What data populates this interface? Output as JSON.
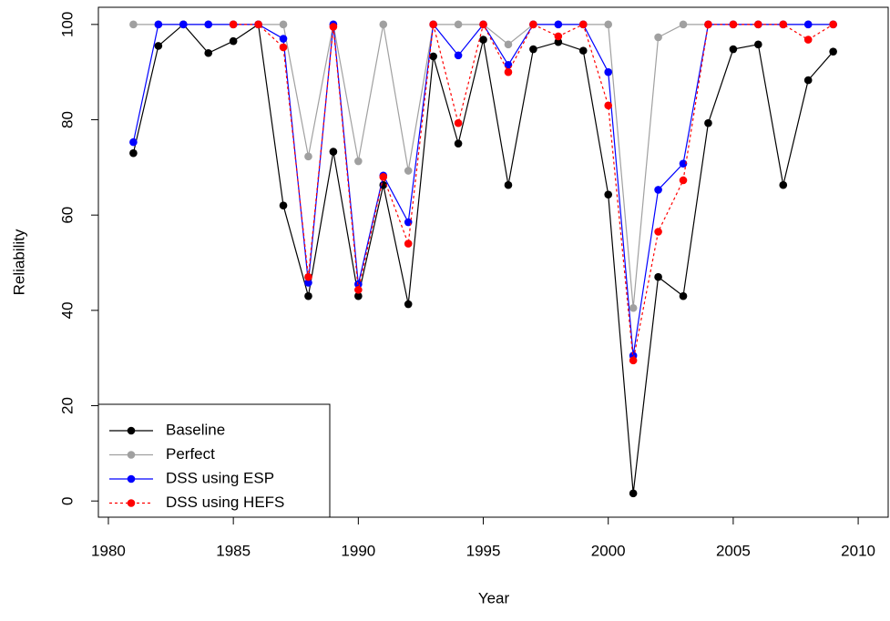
{
  "chart_data": {
    "type": "line",
    "x_label": "Year",
    "y_label": "Reliability",
    "x": [
      1981,
      1982,
      1983,
      1984,
      1985,
      1986,
      1987,
      1988,
      1989,
      1990,
      1991,
      1992,
      1993,
      1994,
      1995,
      1996,
      1997,
      1998,
      1999,
      2000,
      2001,
      2002,
      2003,
      2004,
      2005,
      2006,
      2007,
      2008,
      2009
    ],
    "series": [
      {
        "name": "Baseline",
        "color": "#000000",
        "line_style": "solid",
        "values": [
          73,
          95.5,
          100,
          94,
          96.5,
          100,
          62,
          43,
          73.3,
          43,
          66.3,
          41.3,
          93.3,
          75,
          96.8,
          66.3,
          94.8,
          96.3,
          94.5,
          64.3,
          1.6,
          47,
          43,
          79.3,
          94.8,
          95.8,
          66.3,
          88.3,
          94.3
        ]
      },
      {
        "name": "Perfect",
        "color": "#a0a0a0",
        "line_style": "solid",
        "values": [
          100,
          100,
          100,
          100,
          100,
          100,
          100,
          72.3,
          100,
          71.3,
          100,
          69.3,
          100,
          100,
          100,
          95.8,
          100,
          100,
          100,
          100,
          40.5,
          97.3,
          100,
          100,
          100,
          100,
          100,
          100,
          100
        ]
      },
      {
        "name": "DSS using ESP",
        "color": "#0000ff",
        "line_style": "solid",
        "values": [
          75.3,
          100,
          100,
          100,
          100,
          100,
          97,
          45.8,
          100,
          45.5,
          68.3,
          58.5,
          100,
          93.5,
          100,
          91.5,
          100,
          100,
          100,
          90,
          30.5,
          65.3,
          70.8,
          100,
          100,
          100,
          100,
          100,
          100
        ]
      },
      {
        "name": "DSS using HEFS",
        "color": "#ff0000",
        "line_style": "dotted",
        "values": [
          null,
          null,
          null,
          null,
          100,
          100,
          95.2,
          47,
          99.5,
          44.3,
          68,
          54,
          100,
          79.3,
          100,
          90,
          100,
          97.5,
          100,
          83,
          29.5,
          56.5,
          67.3,
          100,
          100,
          100,
          100,
          96.8,
          100
        ]
      }
    ],
    "xlim": [
      1979.6,
      2011.2
    ],
    "xticks": [
      1980,
      1985,
      1990,
      1995,
      2000,
      2005,
      2010
    ],
    "ylim": [
      -3.4,
      103.6
    ],
    "yticks": [
      0,
      20,
      40,
      60,
      80,
      100
    ],
    "legend": "bottom-left"
  }
}
